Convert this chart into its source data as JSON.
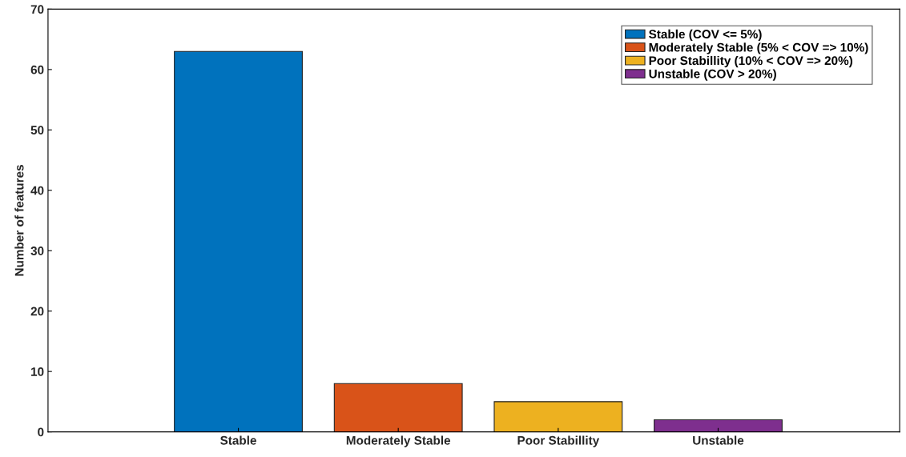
{
  "chart_data": {
    "type": "bar",
    "ylabel": "Number of features",
    "categories": [
      "Stable",
      "Moderately Stable",
      "Poor Stabillity",
      "Unstable"
    ],
    "series": [
      {
        "name": "Stable (COV <= 5%)",
        "color": "#0072bd",
        "values": [
          63,
          null,
          null,
          null
        ]
      },
      {
        "name": "Moderately Stable (5% < COV => 10%)",
        "color": "#d95319",
        "values": [
          null,
          8,
          null,
          null
        ]
      },
      {
        "name": "Poor Stabillity (10% < COV => 20%)",
        "color": "#edb120",
        "values": [
          null,
          null,
          5,
          null
        ]
      },
      {
        "name": "Unstable (COV > 20%)",
        "color": "#7e2f8e",
        "values": [
          null,
          null,
          null,
          2
        ]
      }
    ],
    "ylim": [
      0,
      70
    ],
    "yticks": [
      0,
      10,
      20,
      30,
      40,
      50,
      60,
      70
    ],
    "legend": "top right"
  }
}
